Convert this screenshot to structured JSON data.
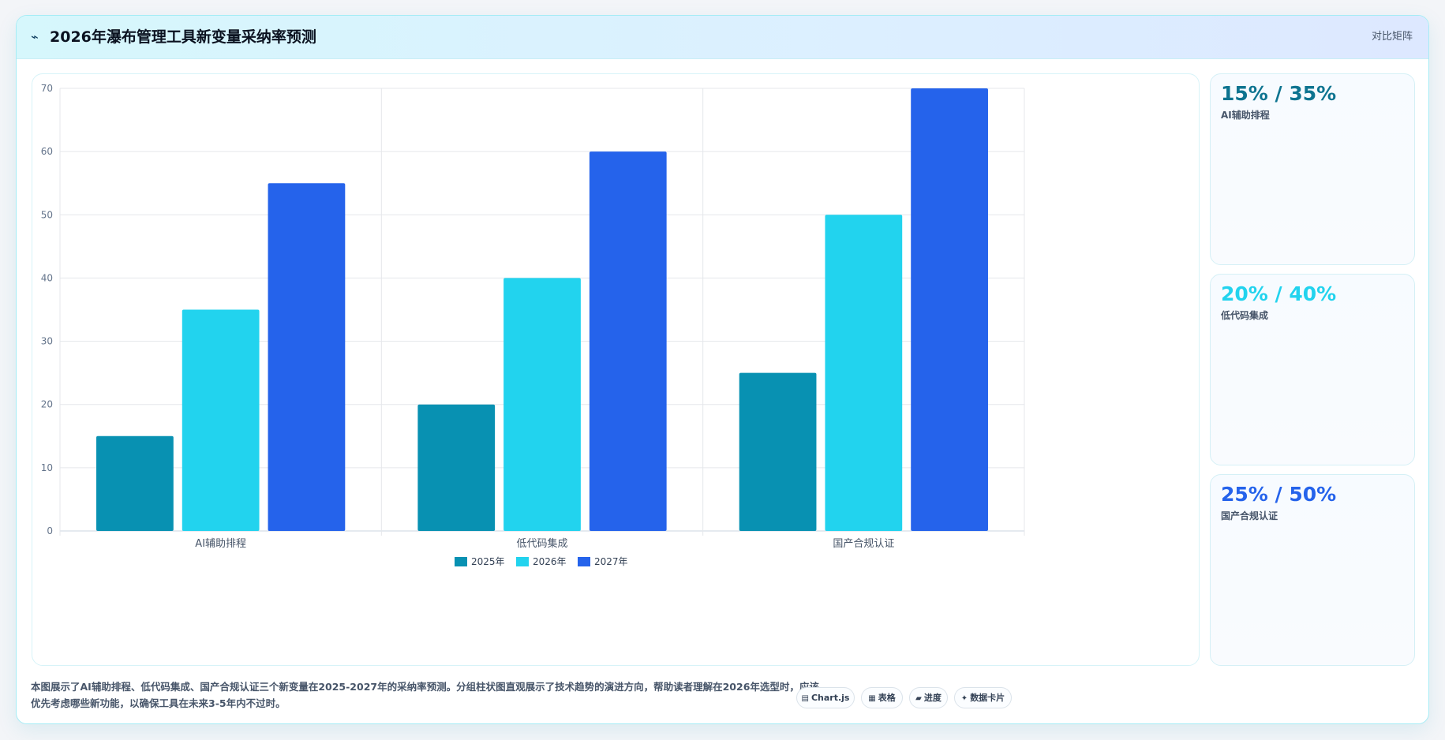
{
  "header": {
    "icon": "⌁",
    "title": "2026年瀑布管理工具新变量采纳率预测",
    "action_label": "对比矩阵"
  },
  "chart_data": {
    "type": "bar",
    "categories": [
      "AI辅助排程",
      "低代码集成",
      "国产合规认证"
    ],
    "series": [
      {
        "name": "2025年",
        "values": [
          15,
          20,
          25
        ],
        "color": "#0891b2"
      },
      {
        "name": "2026年",
        "values": [
          35,
          40,
          50
        ],
        "color": "#22d3ee"
      },
      {
        "name": "2027年",
        "values": [
          55,
          60,
          70
        ],
        "color": "#2563eb"
      }
    ],
    "ylim": [
      0,
      70
    ],
    "yticks": [
      0,
      10,
      20,
      30,
      40,
      50,
      60,
      70
    ],
    "grid": true,
    "legend_position": "bottom",
    "title": "",
    "xlabel": "",
    "ylabel": ""
  },
  "stats": [
    {
      "value": "15% / 35%",
      "label": "AI辅助排程",
      "color": "#0e7490"
    },
    {
      "value": "20% / 40%",
      "label": "低代码集成",
      "color": "#22d3ee"
    },
    {
      "value": "25% / 50%",
      "label": "国产合规认证",
      "color": "#2563eb"
    }
  ],
  "description": "本图展示了AI辅助排程、低代码集成、国产合规认证三个新变量在2025-2027年的采纳率预测。分组柱状图直观展示了技术趋势的演进方向，帮助读者理解在2026年选型时，应该优先考虑哪些新功能，以确保工具在未来3-5年内不过时。",
  "pills": [
    {
      "icon": "▤",
      "label": "Chart.js",
      "icon_name": "chart-icon"
    },
    {
      "icon": "▦",
      "label": "表格",
      "icon_name": "table-icon"
    },
    {
      "icon": "▰",
      "label": "进度",
      "icon_name": "progress-icon"
    },
    {
      "icon": "✦",
      "label": "数据卡片",
      "icon_name": "card-icon"
    }
  ]
}
